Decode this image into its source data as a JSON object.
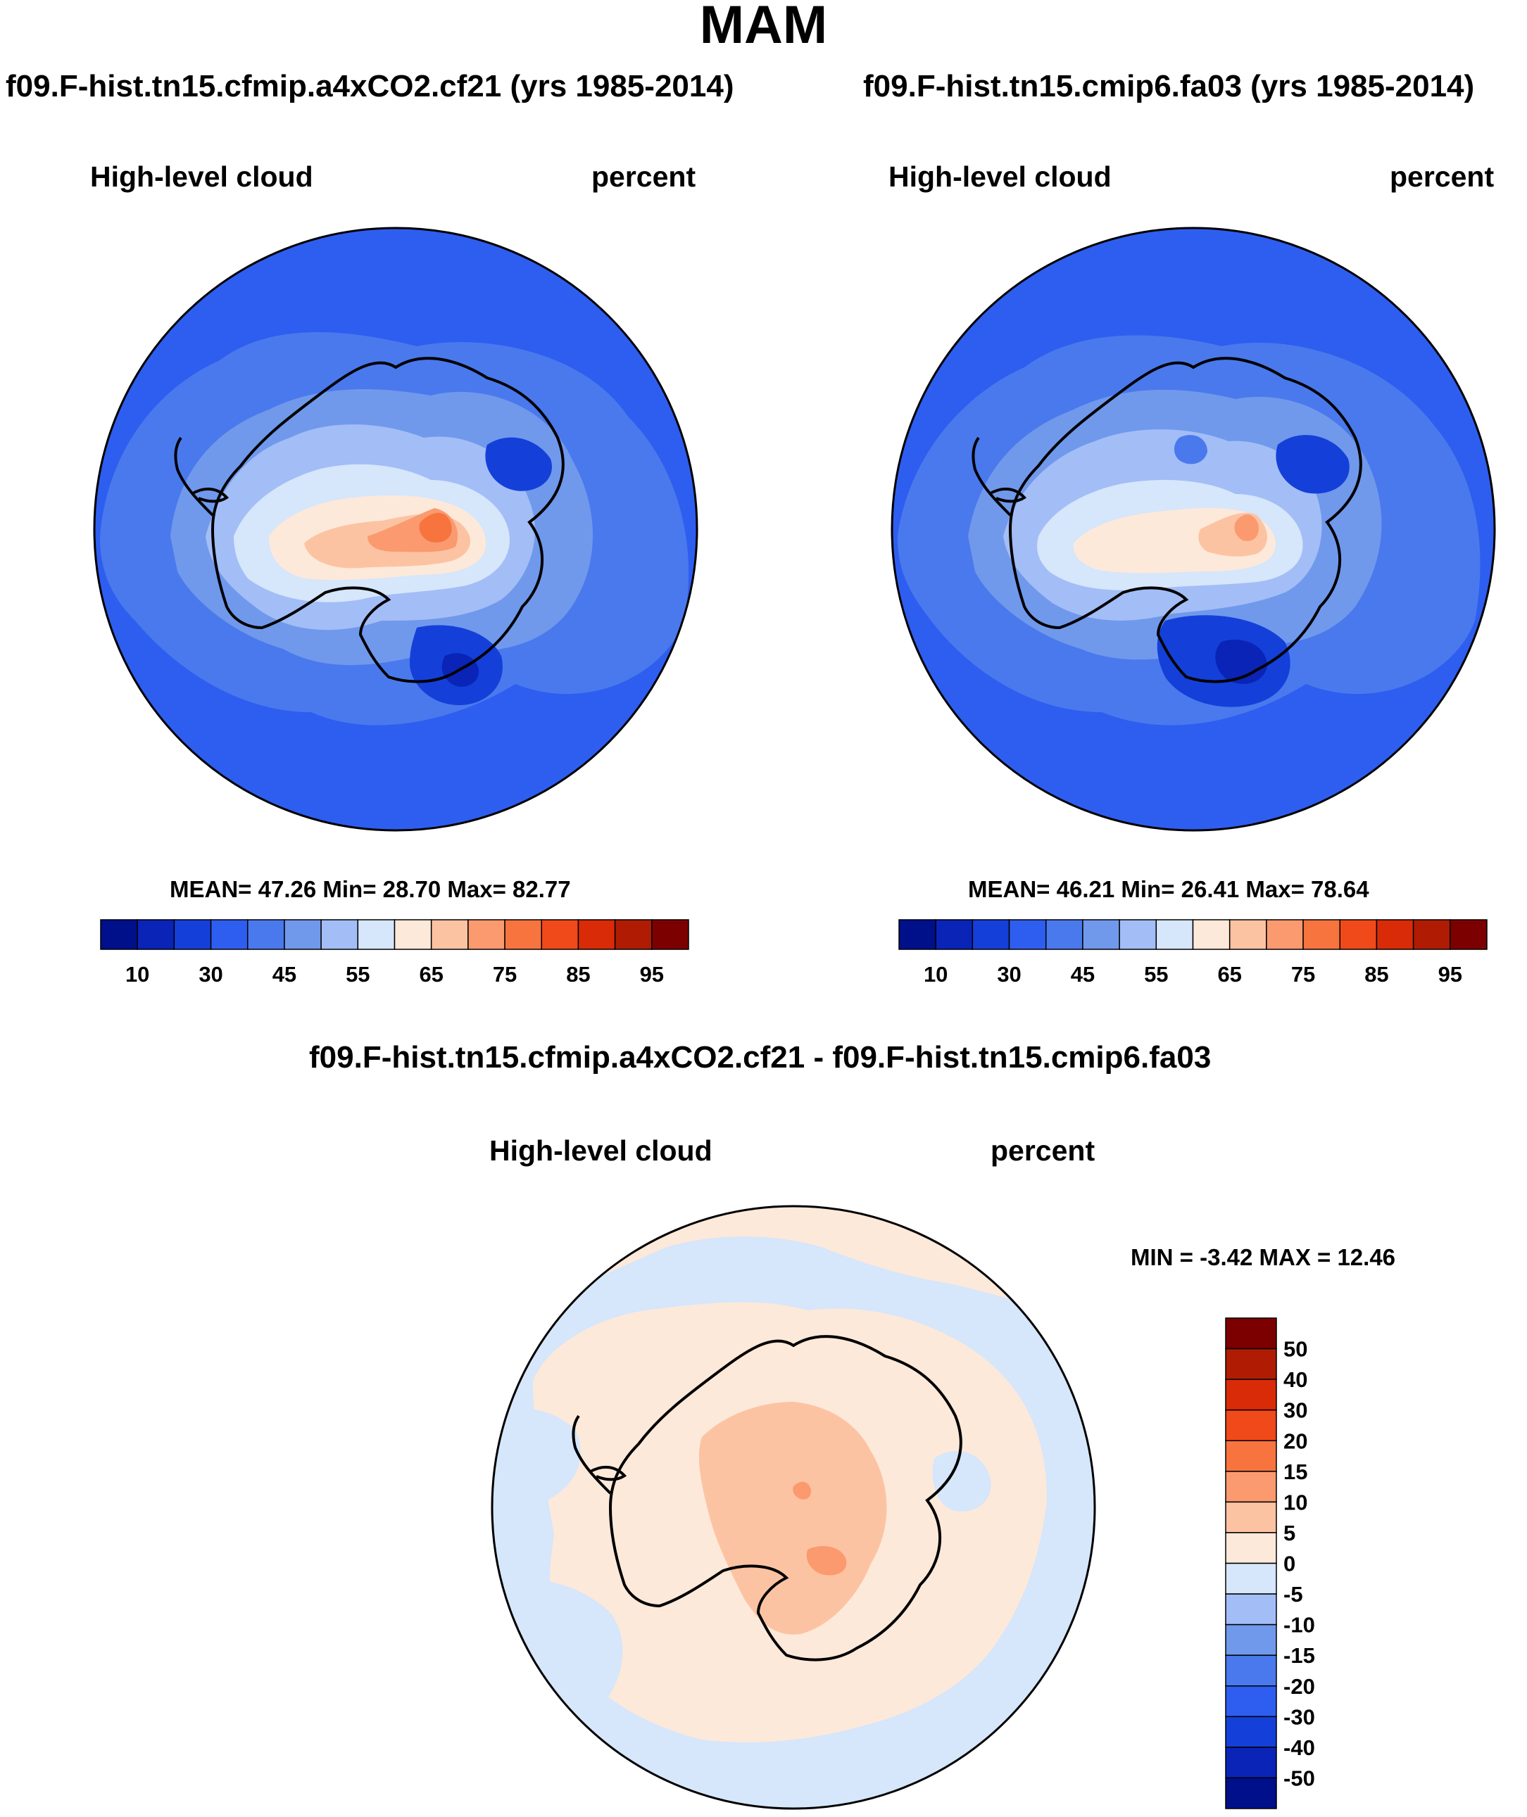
{
  "title": "MAM",
  "panels": [
    {
      "case": "f09.F-hist.tn15.cfmip.a4xCO2.cf21 (yrs 1985-2014)",
      "variable": "High-level cloud",
      "units": "percent",
      "stats": {
        "mean_label": "MEAN=",
        "mean": "47.26",
        "min_label": "Min=",
        "min": "28.70",
        "max_label": "Max=",
        "max": "82.77"
      }
    },
    {
      "case": "f09.F-hist.tn15.cmip6.fa03 (yrs 1985-2014)",
      "variable": "High-level cloud",
      "units": "percent",
      "stats": {
        "mean_label": "MEAN=",
        "mean": "46.21",
        "min_label": "Min=",
        "min": "26.41",
        "max_label": "Max=",
        "max": "78.64"
      }
    }
  ],
  "diff_panel": {
    "case": "f09.F-hist.tn15.cfmip.a4xCO2.cf21 - f09.F-hist.tn15.cmip6.fa03",
    "variable": "High-level cloud",
    "units": "percent",
    "stats": {
      "min_label": "MIN =",
      "min": "-3.42",
      "max_label": "MAX =",
      "max": "12.46"
    }
  },
  "abs_colorbar": {
    "colors": [
      "#000f8a",
      "#0a24b8",
      "#1440d9",
      "#2e5ef0",
      "#4a79ed",
      "#7099ec",
      "#a3bdf6",
      "#d6e6fb",
      "#fde9da",
      "#fcc3a3",
      "#fb9a6f",
      "#f7743f",
      "#f0491a",
      "#d92b07",
      "#b01c03",
      "#7d0000"
    ],
    "labels": [
      "10",
      "30",
      "45",
      "55",
      "65",
      "75",
      "85",
      "95"
    ]
  },
  "diff_colorbar": {
    "colors": [
      "#7d0000",
      "#b01c03",
      "#d92b07",
      "#f0491a",
      "#f7743f",
      "#fb9a6f",
      "#fcc3a3",
      "#fde9da",
      "#d6e6fb",
      "#a3bdf6",
      "#7099ec",
      "#4a79ed",
      "#2e5ef0",
      "#1440d9",
      "#0a24b8",
      "#000f8a"
    ],
    "labels": [
      "50",
      "40",
      "30",
      "20",
      "15",
      "10",
      "5",
      "0",
      "-5",
      "-10",
      "-15",
      "-20",
      "-30",
      "-40",
      "-50"
    ]
  },
  "map_colors": {
    "outline": "#000000",
    "coast": "#000000"
  }
}
